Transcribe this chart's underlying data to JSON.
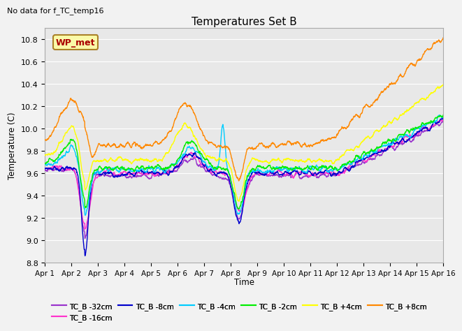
{
  "title": "Temperatures Set B",
  "subtitle": "No data for f_TC_temp16",
  "xlabel": "Time",
  "ylabel": "Temperature (C)",
  "ylim": [
    8.8,
    10.9
  ],
  "series_colors": {
    "TC_B -32cm": "#9933cc",
    "TC_B -16cm": "#ff33cc",
    "TC_B -8cm": "#0000cc",
    "TC_B -4cm": "#00ccff",
    "TC_B -2cm": "#00ee00",
    "TC_B +4cm": "#ffff00",
    "TC_B +8cm": "#ff8800"
  },
  "legend_label": "WP_met",
  "legend_color": "#aa0000",
  "legend_bg": "#ffff99",
  "legend_edge": "#996600",
  "plot_bg": "#e8e8e8",
  "fig_bg": "#f2f2f2",
  "grid_color": "#ffffff",
  "x_ticks": [
    "Apr 1",
    "Apr 2",
    "Apr 3",
    "Apr 4",
    "Apr 5",
    "Apr 6",
    "Apr 7",
    "Apr 8",
    "Apr 9",
    "Apr 10",
    "Apr 11",
    "Apr 12",
    "Apr 13",
    "Apr 14",
    "Apr 15",
    "Apr 16"
  ],
  "y_ticks": [
    8.8,
    9.0,
    9.2,
    9.4,
    9.6,
    9.8,
    10.0,
    10.2,
    10.4,
    10.6,
    10.8
  ],
  "n_points": 2000
}
